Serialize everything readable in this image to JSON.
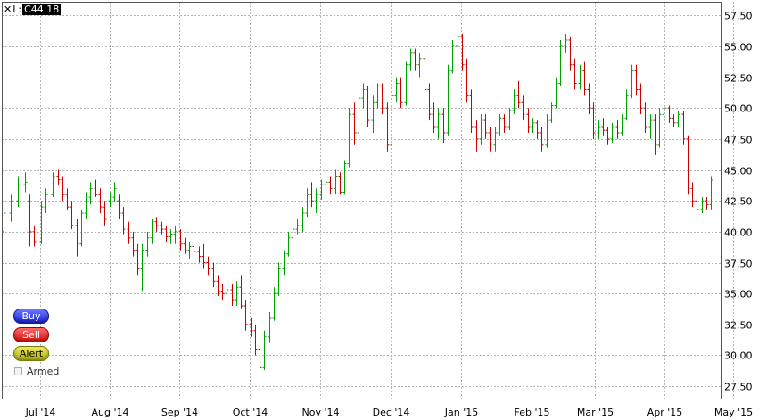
{
  "readout": {
    "prefix": "L:",
    "value": "C44.18"
  },
  "buttons": {
    "buy": "Buy",
    "sell": "Sell",
    "alert": "Alert",
    "armed": "Armed"
  },
  "colors": {
    "up": "#00a000",
    "down": "#cc0000",
    "grid": "#b4b4b4",
    "border": "#555555"
  },
  "chart_data": {
    "type": "ohlc",
    "title": "",
    "xlabel": "",
    "ylabel": "",
    "ylim": [
      26.5,
      58.6
    ],
    "y_ticks": [
      "27.50",
      "30.00",
      "32.50",
      "35.00",
      "37.50",
      "40.00",
      "42.50",
      "45.00",
      "47.50",
      "50.00",
      "52.50",
      "55.00",
      "57.50"
    ],
    "x_labels": [
      "Jul '14",
      "Aug '14",
      "Sep '14",
      "Oct '14",
      "Nov '14",
      "Dec '14",
      "Jan '15",
      "Feb '15",
      "Mar '15",
      "Apr '15",
      "May '15"
    ],
    "x_label_positions": [
      7.8,
      22.6,
      37.3,
      52.3,
      67.3,
      82.3,
      97.3,
      112.3,
      125.8,
      140.6,
      155.3
    ],
    "grid": true,
    "series": [
      {
        "points": [
          [
            0,
            40.0,
            42.0,
            39.8,
            41.5
          ],
          [
            1.5,
            41.5,
            43.0,
            40.8,
            42.5
          ],
          [
            3,
            42.5,
            44.5,
            42.0,
            43.8
          ],
          [
            4.5,
            43.8,
            44.8,
            43.2,
            44.0
          ],
          [
            5.5,
            42.5,
            43.0,
            38.8,
            40.0
          ],
          [
            6.5,
            40.0,
            40.5,
            38.8,
            39.2
          ],
          [
            8,
            39.2,
            42.5,
            39.0,
            42.0
          ],
          [
            9,
            42.0,
            43.5,
            41.5,
            43.0
          ],
          [
            10.5,
            43.0,
            44.8,
            42.8,
            44.5
          ],
          [
            11.5,
            44.5,
            45.0,
            43.8,
            44.2
          ],
          [
            12.5,
            44.2,
            44.5,
            42.5,
            43.0
          ],
          [
            13.5,
            43.0,
            43.5,
            41.8,
            42.0
          ],
          [
            14.5,
            42.0,
            42.5,
            40.2,
            40.5
          ],
          [
            15.5,
            40.5,
            41.0,
            38.0,
            39.0
          ],
          [
            16.5,
            39.0,
            41.8,
            38.8,
            41.5
          ],
          [
            17.5,
            41.5,
            43.2,
            41.0,
            42.8
          ],
          [
            18.5,
            42.8,
            44.0,
            42.2,
            43.5
          ],
          [
            19.5,
            43.5,
            44.2,
            42.8,
            43.0
          ],
          [
            20.5,
            43.0,
            43.5,
            41.5,
            42.0
          ],
          [
            21.5,
            42.0,
            42.5,
            40.5,
            41.0
          ],
          [
            22.5,
            42.5,
            43.2,
            42.0,
            42.8
          ],
          [
            23.5,
            42.8,
            44.0,
            42.4,
            43.5
          ],
          [
            24.5,
            42.5,
            43.0,
            41.0,
            41.5
          ],
          [
            25.5,
            41.5,
            42.0,
            39.8,
            40.2
          ],
          [
            26.5,
            40.2,
            40.8,
            39.0,
            39.5
          ],
          [
            27.5,
            39.5,
            40.0,
            38.0,
            38.5
          ],
          [
            28.5,
            38.5,
            39.0,
            36.5,
            37.0
          ],
          [
            29.5,
            37.0,
            39.0,
            35.2,
            38.5
          ],
          [
            30.5,
            38.5,
            40.0,
            38.0,
            39.5
          ],
          [
            31.5,
            39.5,
            41.0,
            39.0,
            40.8
          ],
          [
            32.5,
            40.8,
            41.2,
            40.0,
            40.5
          ],
          [
            33.5,
            40.5,
            40.8,
            39.8,
            40.2
          ],
          [
            34.5,
            40.2,
            40.5,
            39.2,
            39.6
          ],
          [
            35.5,
            39.6,
            40.2,
            39.0,
            39.8
          ],
          [
            36.5,
            39.8,
            40.5,
            39.0,
            40.0
          ],
          [
            37.5,
            40.0,
            40.2,
            38.5,
            39.0
          ],
          [
            38.5,
            39.0,
            39.5,
            38.2,
            38.5
          ],
          [
            39.5,
            38.5,
            39.2,
            37.8,
            38.8
          ],
          [
            40.5,
            38.8,
            39.5,
            38.0,
            38.4
          ],
          [
            41.5,
            38.4,
            38.8,
            37.5,
            38.0
          ],
          [
            42.5,
            38.0,
            39.0,
            37.0,
            37.5
          ],
          [
            43.5,
            37.5,
            38.0,
            36.5,
            37.0
          ],
          [
            44.5,
            37.0,
            37.5,
            35.5,
            36.0
          ],
          [
            45.5,
            36.0,
            36.5,
            34.8,
            35.2
          ],
          [
            46.5,
            35.2,
            35.8,
            34.5,
            35.0
          ],
          [
            47.5,
            35.0,
            35.8,
            34.5,
            35.3
          ],
          [
            48.5,
            35.3,
            35.8,
            34.0,
            34.5
          ],
          [
            49.5,
            34.5,
            36.0,
            34.0,
            35.5
          ],
          [
            50.5,
            35.5,
            36.5,
            33.8,
            34.0
          ],
          [
            51.5,
            34.0,
            34.5,
            32.0,
            32.5
          ],
          [
            52.5,
            32.5,
            33.0,
            31.5,
            32.0
          ],
          [
            53.5,
            32.0,
            32.5,
            30.0,
            30.5
          ],
          [
            54.5,
            30.5,
            31.0,
            28.2,
            29.0
          ],
          [
            55.5,
            29.0,
            32.0,
            28.8,
            31.5
          ],
          [
            56.5,
            31.5,
            33.5,
            31.0,
            33.0
          ],
          [
            57.5,
            33.0,
            35.5,
            32.8,
            35.0
          ],
          [
            58.5,
            35.0,
            37.5,
            34.8,
            37.0
          ],
          [
            59.5,
            37.0,
            38.5,
            36.5,
            38.2
          ],
          [
            60.5,
            38.2,
            40.0,
            38.0,
            39.5
          ],
          [
            61.5,
            39.5,
            40.5,
            39.0,
            40.2
          ],
          [
            62.5,
            40.2,
            41.0,
            39.8,
            40.5
          ],
          [
            63.5,
            40.5,
            42.0,
            40.0,
            41.5
          ],
          [
            64.5,
            41.5,
            43.5,
            41.2,
            43.0
          ],
          [
            65.5,
            43.0,
            44.0,
            42.0,
            42.5
          ],
          [
            66.5,
            42.5,
            43.5,
            41.5,
            43.0
          ],
          [
            67.5,
            43.0,
            44.2,
            42.6,
            43.8
          ],
          [
            68.5,
            43.8,
            44.5,
            43.2,
            44.0
          ],
          [
            69.5,
            44.0,
            44.5,
            43.0,
            43.5
          ],
          [
            70.5,
            43.5,
            45.0,
            43.0,
            44.5
          ],
          [
            71.5,
            44.5,
            44.8,
            43.0,
            43.2
          ],
          [
            72.5,
            43.2,
            45.8,
            43.0,
            45.5
          ],
          [
            73.5,
            45.5,
            50.0,
            45.2,
            49.5
          ],
          [
            74.5,
            49.5,
            50.5,
            47.0,
            48.0
          ],
          [
            75.5,
            48.0,
            51.2,
            47.5,
            50.8
          ],
          [
            76.5,
            50.8,
            52.0,
            50.0,
            51.5
          ],
          [
            77.5,
            51.5,
            51.8,
            48.5,
            49.0
          ],
          [
            78.5,
            49.0,
            51.0,
            48.0,
            50.5
          ],
          [
            79.5,
            50.5,
            52.0,
            50.0,
            51.8
          ],
          [
            80.5,
            51.8,
            52.0,
            49.5,
            50.0
          ],
          [
            81.5,
            50.0,
            50.5,
            46.5,
            47.0
          ],
          [
            82.5,
            47.0,
            51.5,
            46.8,
            51.0
          ],
          [
            83.5,
            51.0,
            52.5,
            50.5,
            52.0
          ],
          [
            84.5,
            52.0,
            52.5,
            50.0,
            50.5
          ],
          [
            85.5,
            50.5,
            53.8,
            50.2,
            53.5
          ],
          [
            86.5,
            53.5,
            54.8,
            53.0,
            54.5
          ],
          [
            87.5,
            54.5,
            54.8,
            53.0,
            53.5
          ],
          [
            88.5,
            53.5,
            54.5,
            52.5,
            54.0
          ],
          [
            89.5,
            54.0,
            54.5,
            51.0,
            51.5
          ],
          [
            90.5,
            51.5,
            52.0,
            49.0,
            49.5
          ],
          [
            91.5,
            49.5,
            50.5,
            48.0,
            48.5
          ],
          [
            92.5,
            48.5,
            50.0,
            47.5,
            49.5
          ],
          [
            93.5,
            49.5,
            50.0,
            47.2,
            48.0
          ],
          [
            94.5,
            48.0,
            53.5,
            47.8,
            53.0
          ],
          [
            95.5,
            53.0,
            55.5,
            52.8,
            55.0
          ],
          [
            96.5,
            55.0,
            56.2,
            54.5,
            55.8
          ],
          [
            97.5,
            55.8,
            56.0,
            53.0,
            53.5
          ],
          [
            98.5,
            53.5,
            54.0,
            50.5,
            51.0
          ],
          [
            99.5,
            51.0,
            51.5,
            48.0,
            48.5
          ],
          [
            100.5,
            48.5,
            49.0,
            46.5,
            47.5
          ],
          [
            101.5,
            47.5,
            49.5,
            47.0,
            49.0
          ],
          [
            102.5,
            49.0,
            49.5,
            47.5,
            48.0
          ],
          [
            103.5,
            48.0,
            48.5,
            46.5,
            47.0
          ],
          [
            104.5,
            47.0,
            48.5,
            46.5,
            48.0
          ],
          [
            105.5,
            48.0,
            49.5,
            47.8,
            49.2
          ],
          [
            106.5,
            49.2,
            49.5,
            48.0,
            48.5
          ],
          [
            107.5,
            48.5,
            50.0,
            48.2,
            49.8
          ],
          [
            108.5,
            49.8,
            51.5,
            49.5,
            51.0
          ],
          [
            109.5,
            51.0,
            52.2,
            50.0,
            50.5
          ],
          [
            110.5,
            50.5,
            51.0,
            49.0,
            49.5
          ],
          [
            111.5,
            49.5,
            50.0,
            48.0,
            48.5
          ],
          [
            112.5,
            48.5,
            49.2,
            48.0,
            48.8
          ],
          [
            113.5,
            48.8,
            49.0,
            47.5,
            48.0
          ],
          [
            114.5,
            48.0,
            48.5,
            46.5,
            47.0
          ],
          [
            115.5,
            47.0,
            49.5,
            46.8,
            49.0
          ],
          [
            116.5,
            49.0,
            50.5,
            48.8,
            50.2
          ],
          [
            117.5,
            50.2,
            52.5,
            50.0,
            52.0
          ],
          [
            118.5,
            52.0,
            55.5,
            51.8,
            55.0
          ],
          [
            119.5,
            55.0,
            56.0,
            54.5,
            55.5
          ],
          [
            120.5,
            55.5,
            55.8,
            53.0,
            53.5
          ],
          [
            121.5,
            53.5,
            54.0,
            51.5,
            52.0
          ],
          [
            122.5,
            52.0,
            53.5,
            51.5,
            53.0
          ],
          [
            123.5,
            53.0,
            53.8,
            51.0,
            51.5
          ],
          [
            124.5,
            51.5,
            52.0,
            49.5,
            50.0
          ],
          [
            125.5,
            50.0,
            50.5,
            47.5,
            48.0
          ],
          [
            126.5,
            48.0,
            49.0,
            47.5,
            48.5
          ],
          [
            127.5,
            48.5,
            49.2,
            47.8,
            48.2
          ],
          [
            128.5,
            48.2,
            48.5,
            47.0,
            47.5
          ],
          [
            129.5,
            47.5,
            48.8,
            47.2,
            48.5
          ],
          [
            130.5,
            48.5,
            49.0,
            47.5,
            48.0
          ],
          [
            131.5,
            48.0,
            49.5,
            47.8,
            49.2
          ],
          [
            132.5,
            49.2,
            51.5,
            49.0,
            51.0
          ],
          [
            133.5,
            51.0,
            53.5,
            50.8,
            53.0
          ],
          [
            134.5,
            53.0,
            53.5,
            51.0,
            51.5
          ],
          [
            135.5,
            51.5,
            52.0,
            49.5,
            50.0
          ],
          [
            136.5,
            50.0,
            50.5,
            48.0,
            48.5
          ],
          [
            137.5,
            48.5,
            49.5,
            47.5,
            49.0
          ],
          [
            138.5,
            49.0,
            49.5,
            46.2,
            47.0
          ],
          [
            139.5,
            47.0,
            50.0,
            46.8,
            49.5
          ],
          [
            140.5,
            49.5,
            50.5,
            49.0,
            50.0
          ],
          [
            141.5,
            50.0,
            50.2,
            48.8,
            49.2
          ],
          [
            142.5,
            49.2,
            49.5,
            48.5,
            48.8
          ],
          [
            143.5,
            48.8,
            49.8,
            48.5,
            49.5
          ],
          [
            144.5,
            49.5,
            49.8,
            47.0,
            47.5
          ],
          [
            145.5,
            47.5,
            47.8,
            43.0,
            43.5
          ],
          [
            146.5,
            43.5,
            44.0,
            42.0,
            42.5
          ],
          [
            147.5,
            42.5,
            43.0,
            41.4,
            41.8
          ],
          [
            148.5,
            41.8,
            42.8,
            41.5,
            42.5
          ],
          [
            149.5,
            42.5,
            42.8,
            41.8,
            42.2
          ],
          [
            150.5,
            42.2,
            44.5,
            41.8,
            44.18
          ]
        ]
      }
    ]
  }
}
